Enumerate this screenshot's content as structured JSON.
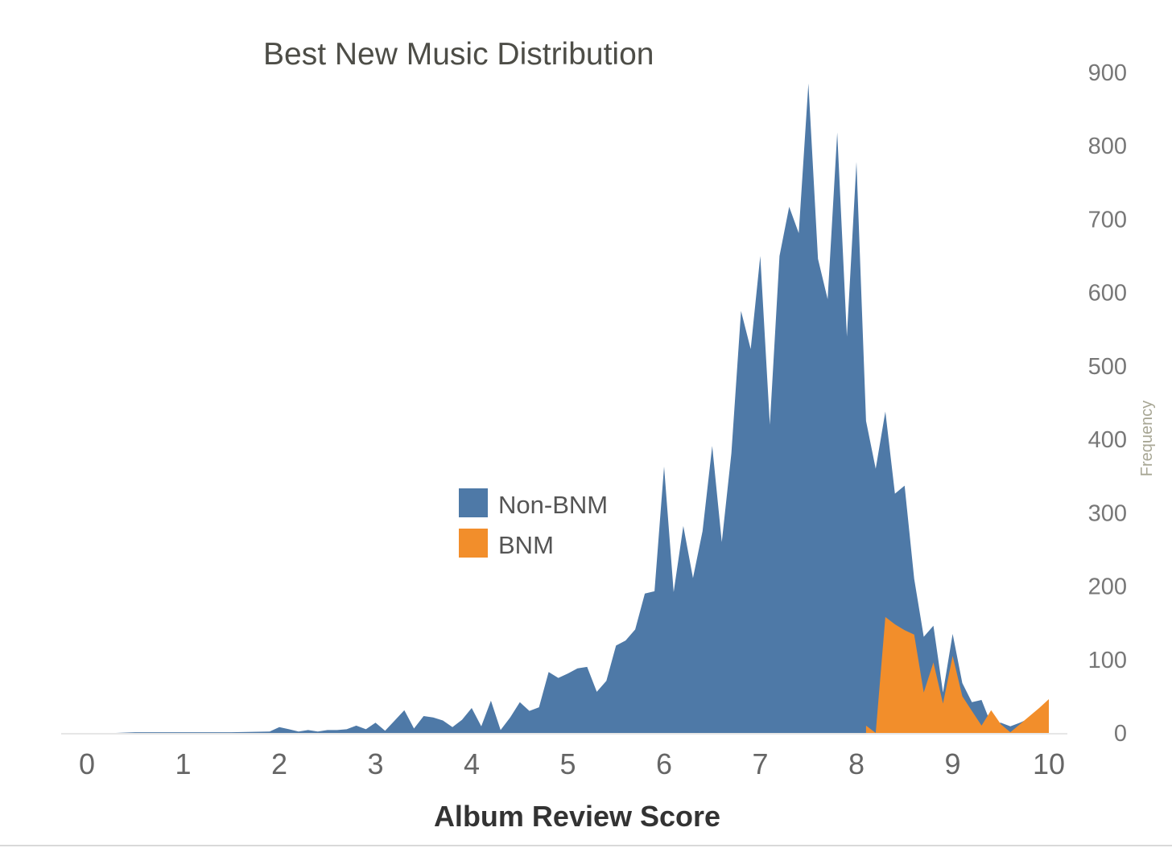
{
  "chart_data": {
    "type": "area",
    "title": "Best New Music Distribution",
    "xlabel": "Album Review Score",
    "ylabel": "Frequency",
    "xlim": [
      -0.25,
      10.2
    ],
    "ylim": [
      0,
      900
    ],
    "x_ticks": [
      "0",
      "1",
      "2",
      "3",
      "4",
      "5",
      "6",
      "7",
      "8",
      "9",
      "10"
    ],
    "y_ticks": [
      "0",
      "100",
      "200",
      "300",
      "400",
      "500",
      "600",
      "700",
      "800",
      "900"
    ],
    "y_axis_position": "right",
    "legend_position": "center",
    "series": [
      {
        "name": "Non-BNM",
        "color": "#4e79a7",
        "points": [
          [
            0.0,
            0
          ],
          [
            0.3,
            0
          ],
          [
            0.5,
            1
          ],
          [
            1.0,
            1
          ],
          [
            1.5,
            1
          ],
          [
            1.9,
            2
          ],
          [
            2.0,
            8
          ],
          [
            2.1,
            5
          ],
          [
            2.2,
            2
          ],
          [
            2.3,
            4
          ],
          [
            2.4,
            2
          ],
          [
            2.5,
            4
          ],
          [
            2.6,
            4
          ],
          [
            2.7,
            5
          ],
          [
            2.8,
            10
          ],
          [
            2.9,
            5
          ],
          [
            3.0,
            14
          ],
          [
            3.1,
            3
          ],
          [
            3.2,
            17
          ],
          [
            3.3,
            31
          ],
          [
            3.4,
            6
          ],
          [
            3.5,
            23
          ],
          [
            3.6,
            21
          ],
          [
            3.7,
            17
          ],
          [
            3.8,
            8
          ],
          [
            3.9,
            18
          ],
          [
            4.0,
            34
          ],
          [
            4.1,
            9
          ],
          [
            4.2,
            44
          ],
          [
            4.3,
            4
          ],
          [
            4.4,
            21
          ],
          [
            4.5,
            42
          ],
          [
            4.6,
            30
          ],
          [
            4.7,
            35
          ],
          [
            4.8,
            83
          ],
          [
            4.9,
            75
          ],
          [
            5.0,
            81
          ],
          [
            5.1,
            88
          ],
          [
            5.2,
            90
          ],
          [
            5.3,
            56
          ],
          [
            5.4,
            71
          ],
          [
            5.5,
            119
          ],
          [
            5.6,
            126
          ],
          [
            5.7,
            141
          ],
          [
            5.8,
            190
          ],
          [
            5.9,
            193
          ],
          [
            6.0,
            363
          ],
          [
            6.1,
            192
          ],
          [
            6.2,
            282
          ],
          [
            6.3,
            211
          ],
          [
            6.4,
            275
          ],
          [
            6.5,
            391
          ],
          [
            6.6,
            260
          ],
          [
            6.7,
            381
          ],
          [
            6.8,
            575
          ],
          [
            6.9,
            523
          ],
          [
            7.0,
            650
          ],
          [
            7.1,
            420
          ],
          [
            7.2,
            650
          ],
          [
            7.3,
            717
          ],
          [
            7.4,
            681
          ],
          [
            7.5,
            885
          ],
          [
            7.6,
            646
          ],
          [
            7.7,
            591
          ],
          [
            7.8,
            818
          ],
          [
            7.9,
            540
          ],
          [
            8.0,
            778
          ],
          [
            8.1,
            425
          ],
          [
            8.2,
            360
          ],
          [
            8.3,
            438
          ],
          [
            8.4,
            326
          ],
          [
            8.5,
            337
          ],
          [
            8.6,
            210
          ],
          [
            8.7,
            131
          ],
          [
            8.8,
            146
          ],
          [
            8.9,
            55
          ],
          [
            9.0,
            135
          ],
          [
            9.1,
            68
          ],
          [
            9.2,
            42
          ],
          [
            9.3,
            45
          ],
          [
            9.4,
            12
          ],
          [
            9.5,
            14
          ],
          [
            9.6,
            9
          ],
          [
            9.7,
            14
          ],
          [
            9.8,
            20
          ],
          [
            9.9,
            30
          ],
          [
            10.0,
            42
          ]
        ]
      },
      {
        "name": "BNM",
        "color": "#f28e2b",
        "points": [
          [
            8.1,
            10
          ],
          [
            8.2,
            0
          ],
          [
            8.3,
            158
          ],
          [
            8.4,
            148
          ],
          [
            8.5,
            140
          ],
          [
            8.6,
            134
          ],
          [
            8.7,
            55
          ],
          [
            8.8,
            96
          ],
          [
            8.9,
            40
          ],
          [
            9.0,
            105
          ],
          [
            9.1,
            50
          ],
          [
            9.2,
            30
          ],
          [
            9.3,
            10
          ],
          [
            9.4,
            31
          ],
          [
            9.5,
            12
          ],
          [
            9.6,
            1
          ],
          [
            9.7,
            12
          ],
          [
            9.8,
            23
          ],
          [
            9.9,
            34
          ],
          [
            10.0,
            46
          ]
        ]
      }
    ]
  }
}
